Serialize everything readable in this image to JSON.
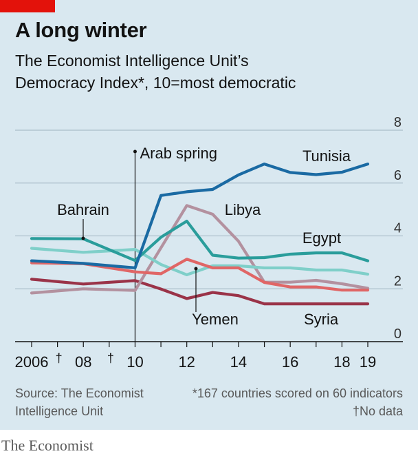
{
  "header": {
    "title": "A long winter",
    "subtitle_line1": "The Economist Intelligence Unit’s",
    "subtitle_bold": "Democracy Index*",
    "subtitle_rest": ", 10=most democratic"
  },
  "footer": {
    "source": "Source: The Economist Intelligence Unit",
    "footnote_line1": "*167 countries scored on 60 indicators",
    "footnote_line2": "†No data",
    "brand": "The Economist"
  },
  "colors": {
    "background": "#d9e8f0",
    "red_tag": "#e3120b",
    "Tunisia": "#1a6aa3",
    "Egypt": "#2a9d9b",
    "Bahrain": "#7fcfc9",
    "Libya": "#b3919f",
    "Yemen": "#e06666",
    "Syria": "#9a3348"
  },
  "chart_data": {
    "type": "line",
    "x": [
      2006,
      2008,
      2010,
      2011,
      2012,
      2013,
      2014,
      2015,
      2016,
      2017,
      2018,
      2019
    ],
    "x_tick_labels": [
      "2006",
      "08",
      "10",
      "12",
      "14",
      "16",
      "18",
      "19"
    ],
    "x_tick_values": [
      2006,
      2008,
      2010,
      2012,
      2014,
      2016,
      2018,
      2019
    ],
    "no_data_marks": [
      {
        "x": 2007,
        "label": "†"
      },
      {
        "x": 2009,
        "label": "†"
      }
    ],
    "y_tick_values": [
      0,
      2,
      4,
      6,
      8
    ],
    "y_tick_labels": [
      "0",
      "2",
      "4",
      "6",
      "8"
    ],
    "ylim": [
      0,
      8
    ],
    "xlim": [
      2006,
      2019
    ],
    "annotation": {
      "x": 2010,
      "label": "Arab spring"
    },
    "series": [
      {
        "name": "Syria",
        "values": [
          2.36,
          2.18,
          2.31,
          1.99,
          1.63,
          1.86,
          1.74,
          1.43,
          1.43,
          1.43,
          1.43,
          1.43
        ]
      },
      {
        "name": "Libya",
        "values": [
          1.84,
          2.0,
          1.94,
          3.55,
          5.15,
          4.82,
          3.8,
          2.25,
          2.25,
          2.32,
          2.19,
          2.02
        ]
      },
      {
        "name": "Bahrain",
        "values": [
          3.53,
          3.38,
          3.49,
          2.92,
          2.53,
          2.87,
          2.87,
          2.79,
          2.79,
          2.71,
          2.71,
          2.55
        ]
      },
      {
        "name": "Yemen",
        "values": [
          2.98,
          2.95,
          2.64,
          2.57,
          3.12,
          2.79,
          2.79,
          2.24,
          2.07,
          2.07,
          1.95,
          1.95
        ]
      },
      {
        "name": "Egypt",
        "values": [
          3.9,
          3.89,
          3.07,
          3.95,
          4.56,
          3.27,
          3.16,
          3.18,
          3.31,
          3.36,
          3.36,
          3.06
        ]
      },
      {
        "name": "Tunisia",
        "values": [
          3.06,
          2.96,
          2.79,
          5.53,
          5.67,
          5.76,
          6.31,
          6.72,
          6.4,
          6.32,
          6.41,
          6.72
        ]
      }
    ],
    "labels": [
      {
        "series": "Tunisia",
        "text": "Tunisia"
      },
      {
        "series": "Bahrain",
        "text": "Bahrain"
      },
      {
        "series": "Libya",
        "text": "Libya"
      },
      {
        "series": "Egypt",
        "text": "Egypt"
      },
      {
        "series": "Yemen",
        "text": "Yemen"
      },
      {
        "series": "Syria",
        "text": "Syria"
      }
    ]
  }
}
